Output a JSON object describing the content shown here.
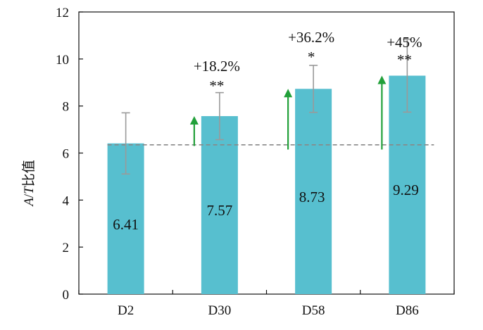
{
  "chart_data": {
    "type": "bar",
    "categories": [
      "D2",
      "D30",
      "D58",
      "D86"
    ],
    "values": [
      6.41,
      7.57,
      8.73,
      9.29
    ],
    "error": [
      1.3,
      1.0,
      1.0,
      1.55
    ],
    "data_labels": [
      "6.41",
      "7.57",
      "8.73",
      "9.29"
    ],
    "annotations": [
      {
        "index": 1,
        "change": "+18.2%",
        "signif": "**"
      },
      {
        "index": 2,
        "change": "+36.2%",
        "signif": "*"
      },
      {
        "index": 3,
        "change": "+45%",
        "signif": "**"
      }
    ],
    "arrows": [
      {
        "index": 1,
        "from": 6.3,
        "to": 7.57
      },
      {
        "index": 2,
        "from": 6.15,
        "to": 8.73
      },
      {
        "index": 3,
        "from": 6.15,
        "to": 9.29
      }
    ],
    "reference_line": 6.35,
    "ylabel": "A/T比值",
    "xlabel": "",
    "ylim": [
      0,
      12
    ],
    "yticks": [
      0,
      2,
      4,
      6,
      8,
      10,
      12
    ],
    "grid": false,
    "colors": {
      "bar": "#57BFCF",
      "error": "#9a9a9a",
      "reference": "#888888",
      "arrow": "#22A03A",
      "axis": "#111111"
    }
  }
}
